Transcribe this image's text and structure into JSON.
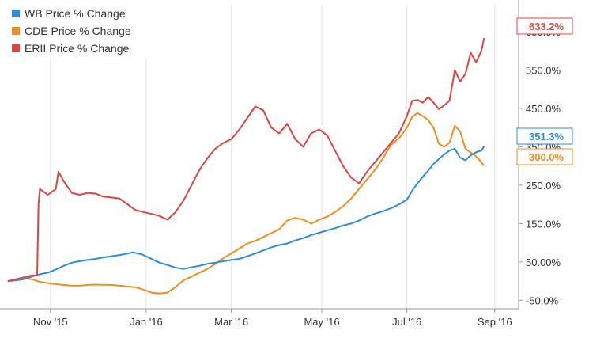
{
  "chart_data": {
    "type": "line",
    "title": "",
    "xlabel": "",
    "ylabel": "",
    "x_tick_labels": [
      "Nov '15",
      "Jan '16",
      "Mar '16",
      "May '16",
      "Jul '16",
      "Sep '16"
    ],
    "y_tick_labels": [
      "-50.0%",
      "50.00%",
      "150.0%",
      "250.0%",
      "350.0%",
      "450.0%",
      "550.0%",
      "650.0%"
    ],
    "y_ticks": [
      -50,
      50,
      150,
      250,
      350,
      450,
      550,
      650
    ],
    "ylim": [
      -72,
      720
    ],
    "grid": "vertical",
    "legend_position": "top-left",
    "series": [
      {
        "name": "WB Price % Change",
        "color": "#2b8ddd",
        "end_label": "351.3%",
        "points": [
          [
            0,
            0
          ],
          [
            3,
            2
          ],
          [
            6,
            5
          ],
          [
            9,
            12
          ],
          [
            12,
            18
          ],
          [
            15,
            22
          ],
          [
            18,
            30
          ],
          [
            21,
            40
          ],
          [
            24,
            48
          ],
          [
            27,
            52
          ],
          [
            30,
            55
          ],
          [
            33,
            58
          ],
          [
            36,
            62
          ],
          [
            39,
            65
          ],
          [
            42,
            68
          ],
          [
            45,
            72
          ],
          [
            47,
            75
          ],
          [
            49,
            72
          ],
          [
            51,
            68
          ],
          [
            54,
            58
          ],
          [
            57,
            48
          ],
          [
            60,
            42
          ],
          [
            63,
            35
          ],
          [
            66,
            32
          ],
          [
            69,
            36
          ],
          [
            72,
            40
          ],
          [
            75,
            45
          ],
          [
            78,
            48
          ],
          [
            81,
            52
          ],
          [
            84,
            55
          ],
          [
            87,
            58
          ],
          [
            90,
            65
          ],
          [
            93,
            72
          ],
          [
            96,
            80
          ],
          [
            99,
            88
          ],
          [
            102,
            94
          ],
          [
            105,
            98
          ],
          [
            108,
            106
          ],
          [
            111,
            112
          ],
          [
            114,
            120
          ],
          [
            117,
            126
          ],
          [
            120,
            132
          ],
          [
            123,
            138
          ],
          [
            126,
            145
          ],
          [
            129,
            150
          ],
          [
            132,
            158
          ],
          [
            135,
            168
          ],
          [
            138,
            176
          ],
          [
            141,
            182
          ],
          [
            144,
            190
          ],
          [
            147,
            200
          ],
          [
            150,
            212
          ],
          [
            152,
            236
          ],
          [
            154,
            255
          ],
          [
            156,
            272
          ],
          [
            158,
            288
          ],
          [
            160,
            305
          ],
          [
            162,
            318
          ],
          [
            164,
            330
          ],
          [
            166,
            340
          ],
          [
            168,
            345
          ],
          [
            170,
            322
          ],
          [
            172,
            315
          ],
          [
            174,
            328
          ],
          [
            176,
            336
          ],
          [
            178,
            340
          ],
          [
            179,
            351.3
          ]
        ]
      },
      {
        "name": "CDE Price % Change",
        "color": "#f28d1f",
        "end_label": "300.0%",
        "points": [
          [
            0,
            0
          ],
          [
            3,
            3
          ],
          [
            6,
            8
          ],
          [
            9,
            5
          ],
          [
            12,
            -2
          ],
          [
            15,
            -5
          ],
          [
            18,
            -8
          ],
          [
            21,
            -10
          ],
          [
            24,
            -12
          ],
          [
            27,
            -12
          ],
          [
            30,
            -10
          ],
          [
            33,
            -9
          ],
          [
            36,
            -10
          ],
          [
            39,
            -10
          ],
          [
            42,
            -12
          ],
          [
            45,
            -14
          ],
          [
            48,
            -16
          ],
          [
            51,
            -22
          ],
          [
            54,
            -30
          ],
          [
            57,
            -32
          ],
          [
            60,
            -30
          ],
          [
            63,
            -15
          ],
          [
            66,
            2
          ],
          [
            69,
            12
          ],
          [
            72,
            22
          ],
          [
            75,
            32
          ],
          [
            78,
            45
          ],
          [
            81,
            60
          ],
          [
            84,
            72
          ],
          [
            87,
            85
          ],
          [
            90,
            98
          ],
          [
            93,
            105
          ],
          [
            96,
            115
          ],
          [
            99,
            125
          ],
          [
            102,
            135
          ],
          [
            105,
            158
          ],
          [
            108,
            165
          ],
          [
            111,
            160
          ],
          [
            114,
            150
          ],
          [
            117,
            160
          ],
          [
            120,
            168
          ],
          [
            123,
            180
          ],
          [
            126,
            195
          ],
          [
            129,
            215
          ],
          [
            132,
            240
          ],
          [
            135,
            265
          ],
          [
            138,
            290
          ],
          [
            141,
            320
          ],
          [
            144,
            355
          ],
          [
            147,
            372
          ],
          [
            150,
            400
          ],
          [
            152,
            428
          ],
          [
            154,
            438
          ],
          [
            156,
            430
          ],
          [
            158,
            420
          ],
          [
            160,
            400
          ],
          [
            162,
            358
          ],
          [
            164,
            350
          ],
          [
            166,
            360
          ],
          [
            168,
            405
          ],
          [
            170,
            390
          ],
          [
            172,
            345
          ],
          [
            174,
            335
          ],
          [
            176,
            325
          ],
          [
            178,
            310
          ],
          [
            179,
            300.0
          ]
        ]
      },
      {
        "name": "ERII Price % Change",
        "color": "#e04442",
        "end_label": "633.2%",
        "points": [
          [
            0,
            0
          ],
          [
            3,
            5
          ],
          [
            6,
            10
          ],
          [
            9,
            15
          ],
          [
            11,
            15
          ],
          [
            11.5,
            200
          ],
          [
            12,
            240
          ],
          [
            15,
            225
          ],
          [
            18,
            240
          ],
          [
            19,
            285
          ],
          [
            21,
            260
          ],
          [
            24,
            230
          ],
          [
            27,
            225
          ],
          [
            30,
            230
          ],
          [
            33,
            228
          ],
          [
            36,
            220
          ],
          [
            39,
            218
          ],
          [
            42,
            215
          ],
          [
            45,
            200
          ],
          [
            48,
            185
          ],
          [
            51,
            180
          ],
          [
            54,
            175
          ],
          [
            57,
            170
          ],
          [
            60,
            160
          ],
          [
            63,
            180
          ],
          [
            66,
            210
          ],
          [
            69,
            250
          ],
          [
            72,
            290
          ],
          [
            75,
            320
          ],
          [
            78,
            345
          ],
          [
            81,
            360
          ],
          [
            84,
            370
          ],
          [
            87,
            395
          ],
          [
            90,
            425
          ],
          [
            93,
            455
          ],
          [
            96,
            445
          ],
          [
            99,
            400
          ],
          [
            102,
            385
          ],
          [
            105,
            410
          ],
          [
            108,
            370
          ],
          [
            111,
            350
          ],
          [
            114,
            385
          ],
          [
            117,
            395
          ],
          [
            120,
            380
          ],
          [
            123,
            340
          ],
          [
            126,
            300
          ],
          [
            129,
            270
          ],
          [
            132,
            255
          ],
          [
            135,
            285
          ],
          [
            138,
            310
          ],
          [
            141,
            335
          ],
          [
            144,
            360
          ],
          [
            147,
            385
          ],
          [
            150,
            430
          ],
          [
            152,
            470
          ],
          [
            154,
            472
          ],
          [
            156,
            465
          ],
          [
            158,
            480
          ],
          [
            160,
            465
          ],
          [
            162,
            448
          ],
          [
            164,
            458
          ],
          [
            166,
            470
          ],
          [
            168,
            550
          ],
          [
            170,
            520
          ],
          [
            172,
            540
          ],
          [
            174,
            595
          ],
          [
            176,
            570
          ],
          [
            178,
            600
          ],
          [
            179,
            633.2
          ]
        ]
      }
    ],
    "x_tick_positions": [
      16,
      52,
      84,
      118,
      150,
      183
    ],
    "x_domain": [
      0,
      192
    ]
  }
}
